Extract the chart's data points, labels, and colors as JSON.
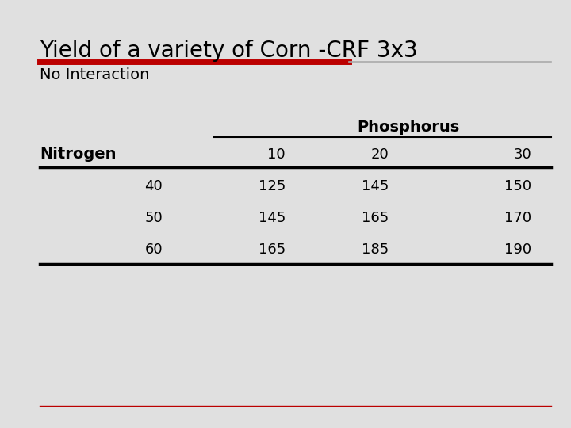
{
  "title": "Yield of a variety of Corn -CRF 3x3",
  "subtitle": "No Interaction",
  "background_color": "#e0e0e0",
  "title_fontsize": 20,
  "subtitle_fontsize": 14,
  "table_fontsize": 13,
  "red_line_color": "#bb0000",
  "gray_line_color": "#aaaaaa",
  "table": {
    "group_header": "Phosphorus",
    "col_header_label": "Nitrogen",
    "col_headers": [
      "10",
      "20",
      "30"
    ],
    "row_headers": [
      "40",
      "50",
      "60"
    ],
    "data": [
      [
        125,
        145,
        150
      ],
      [
        145,
        165,
        170
      ],
      [
        165,
        185,
        190
      ]
    ]
  }
}
